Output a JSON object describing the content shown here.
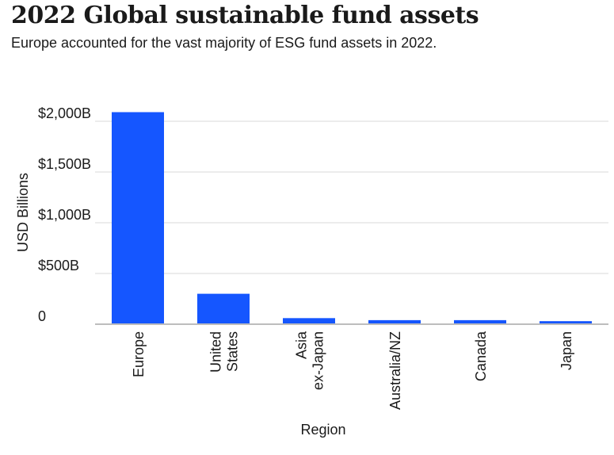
{
  "header": {
    "title": "2022 Global sustainable fund assets",
    "subtitle": "Europe accounted for the vast majority of ESG fund assets in 2022."
  },
  "chart_data": {
    "type": "bar",
    "categories": [
      [
        "Europe"
      ],
      [
        "United",
        "States"
      ],
      [
        "Asia",
        "ex-Japan"
      ],
      [
        "Australia/NZ"
      ],
      [
        "Canada"
      ],
      [
        "Japan"
      ]
    ],
    "values": [
      2090,
      300,
      60,
      40,
      40,
      30
    ],
    "xlabel": "Region",
    "ylabel": "USD Billions",
    "ylim": [
      0,
      2000
    ],
    "yticks": [
      0,
      500,
      1000,
      1500,
      2000
    ],
    "ytick_labels": [
      "0",
      "$500B",
      "$1,000B",
      "$1,500B",
      "$2,000B"
    ],
    "grid": true,
    "bar_color": "#1556ff"
  }
}
